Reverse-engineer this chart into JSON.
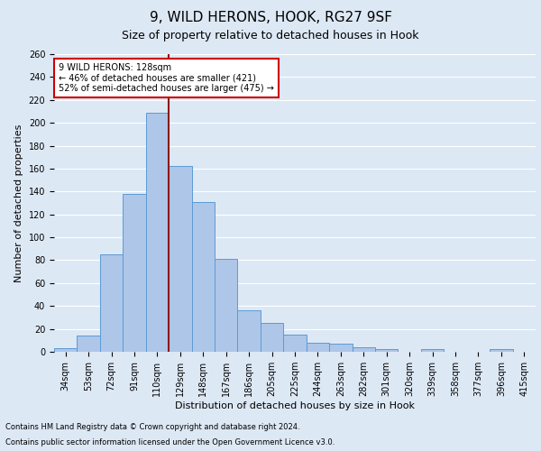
{
  "title": "9, WILD HERONS, HOOK, RG27 9SF",
  "subtitle": "Size of property relative to detached houses in Hook",
  "xlabel": "Distribution of detached houses by size in Hook",
  "ylabel": "Number of detached properties",
  "bar_labels": [
    "34sqm",
    "53sqm",
    "72sqm",
    "91sqm",
    "110sqm",
    "129sqm",
    "148sqm",
    "167sqm",
    "186sqm",
    "205sqm",
    "225sqm",
    "244sqm",
    "263sqm",
    "282sqm",
    "301sqm",
    "320sqm",
    "339sqm",
    "358sqm",
    "377sqm",
    "396sqm",
    "415sqm"
  ],
  "bar_values": [
    3,
    14,
    85,
    138,
    209,
    162,
    131,
    81,
    36,
    25,
    15,
    8,
    7,
    4,
    2,
    0,
    2,
    0,
    0,
    2,
    0
  ],
  "bar_color": "#aec6e8",
  "bar_edge_color": "#5b9bd5",
  "vline_x_idx": 5,
  "vline_color": "#8b1a1a",
  "annotation_title": "9 WILD HERONS: 128sqm",
  "annotation_line1": "← 46% of detached houses are smaller (421)",
  "annotation_line2": "52% of semi-detached houses are larger (475) →",
  "annotation_box_color": "#ffffff",
  "annotation_box_edge": "#cc0000",
  "ylim": [
    0,
    260
  ],
  "yticks": [
    0,
    20,
    40,
    60,
    80,
    100,
    120,
    140,
    160,
    180,
    200,
    220,
    240,
    260
  ],
  "footnote1": "Contains HM Land Registry data © Crown copyright and database right 2024.",
  "footnote2": "Contains public sector information licensed under the Open Government Licence v3.0.",
  "bg_color": "#dde8f5",
  "plot_bg_color": "#dde8f5",
  "grid_color": "#ffffff",
  "title_fontsize": 11,
  "subtitle_fontsize": 9,
  "axis_label_fontsize": 8,
  "tick_fontsize": 7,
  "footnote_fontsize": 6
}
